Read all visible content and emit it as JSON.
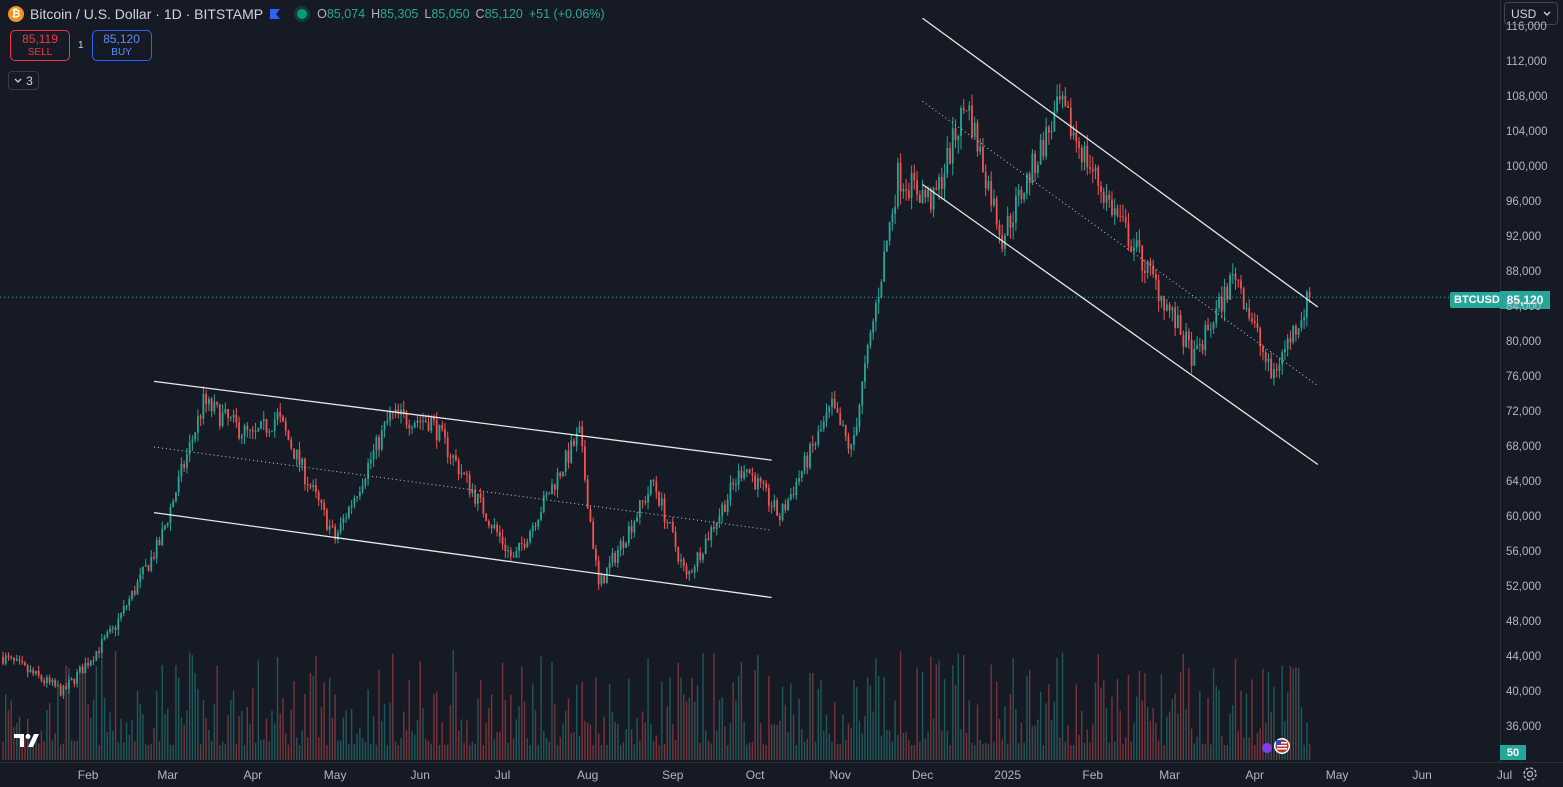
{
  "header": {
    "symbol_title": "Bitcoin / U.S. Dollar · 1D · BITSTAMP",
    "ohlc": {
      "open_label": "O",
      "open": "85,074",
      "high_label": "H",
      "high": "85,305",
      "low_label": "L",
      "low": "85,050",
      "close_label": "C",
      "close": "85,120",
      "change": "+51 (+0.06%)"
    },
    "icons": {
      "logo": "bitcoin-logo-icon",
      "flag": "flag-icon",
      "status": "market-open-dot-icon"
    }
  },
  "trade": {
    "sell_price": "85,119",
    "sell_label": "SELL",
    "spread": "1",
    "buy_price": "85,120",
    "buy_label": "BUY"
  },
  "indicators_toggle": {
    "count": "3"
  },
  "price_scale": {
    "currency": "USD",
    "current_symbol_tag": "BTCUSD",
    "current_price_tag": "85,120",
    "volume_tag": "50",
    "ticks": [
      "116,000",
      "112,000",
      "108,000",
      "104,000",
      "100,000",
      "96,000",
      "92,000",
      "88,000",
      "84,000",
      "80,000",
      "76,000",
      "72,000",
      "68,000",
      "64,000",
      "60,000",
      "56,000",
      "52,000",
      "48,000",
      "44,000",
      "40,000",
      "36,000"
    ]
  },
  "time_scale": {
    "ticks": [
      "Feb",
      "Mar",
      "Apr",
      "May",
      "Jun",
      "Jul",
      "Aug",
      "Sep",
      "Oct",
      "Nov",
      "Dec",
      "2025",
      "Feb",
      "Mar",
      "Apr",
      "May",
      "Jun",
      "Jul"
    ]
  },
  "colors": {
    "background": "#161a25",
    "up": "#26a69a",
    "down": "#ef5350",
    "grid": "#2a2e39"
  },
  "chart_data": {
    "type": "candlestick",
    "current_price": 85120,
    "ylim": [
      33000,
      118000
    ],
    "x_start_month": "2024-01",
    "x_months": [
      "Feb 2024",
      "Mar 2024",
      "Apr 2024",
      "May 2024",
      "Jun 2024",
      "Jul 2024",
      "Aug 2024",
      "Sep 2024",
      "Oct 2024",
      "Nov 2024",
      "Dec 2024",
      "Jan 2025",
      "Feb 2025",
      "Mar 2025",
      "Apr 2025",
      "May 2025",
      "Jun 2025",
      "Jul 2025"
    ],
    "price_path": [
      {
        "date": "2024-01-01",
        "price": 44000
      },
      {
        "date": "2024-01-23",
        "price": 40000
      },
      {
        "date": "2024-02-10",
        "price": 47000
      },
      {
        "date": "2024-02-27",
        "price": 57000
      },
      {
        "date": "2024-03-14",
        "price": 73000
      },
      {
        "date": "2024-04-01",
        "price": 69000
      },
      {
        "date": "2024-04-10",
        "price": 71500
      },
      {
        "date": "2024-05-01",
        "price": 57500
      },
      {
        "date": "2024-05-21",
        "price": 71500
      },
      {
        "date": "2024-06-05",
        "price": 71000
      },
      {
        "date": "2024-07-05",
        "price": 55000
      },
      {
        "date": "2024-07-29",
        "price": 69500
      },
      {
        "date": "2024-08-05",
        "price": 52000
      },
      {
        "date": "2024-08-25",
        "price": 64000
      },
      {
        "date": "2024-09-06",
        "price": 53000
      },
      {
        "date": "2024-09-27",
        "price": 66000
      },
      {
        "date": "2024-10-10",
        "price": 60000
      },
      {
        "date": "2024-10-29",
        "price": 72500
      },
      {
        "date": "2024-11-05",
        "price": 67500
      },
      {
        "date": "2024-11-22",
        "price": 99000
      },
      {
        "date": "2024-12-05",
        "price": 96000
      },
      {
        "date": "2024-12-17",
        "price": 107500
      },
      {
        "date": "2024-12-30",
        "price": 92000
      },
      {
        "date": "2025-01-20",
        "price": 107000
      },
      {
        "date": "2025-02-05",
        "price": 97000
      },
      {
        "date": "2025-02-25",
        "price": 86000
      },
      {
        "date": "2025-03-10",
        "price": 78000
      },
      {
        "date": "2025-03-25",
        "price": 88000
      },
      {
        "date": "2025-04-07",
        "price": 76000
      },
      {
        "date": "2025-04-21",
        "price": 85120
      }
    ],
    "channels": [
      {
        "name": "2024 descending channel",
        "upper": [
          {
            "date": "2024-02-25",
            "price": 75500
          },
          {
            "date": "2024-10-07",
            "price": 66500
          }
        ],
        "middle": [
          {
            "date": "2024-02-25",
            "price": 68000
          },
          {
            "date": "2024-10-07",
            "price": 58500
          }
        ],
        "lower": [
          {
            "date": "2024-02-25",
            "price": 60500
          },
          {
            "date": "2024-10-07",
            "price": 50800
          }
        ]
      },
      {
        "name": "2025 descending channel",
        "upper": [
          {
            "date": "2024-12-01",
            "price": 117000
          },
          {
            "date": "2025-04-24",
            "price": 84000
          }
        ],
        "middle": [
          {
            "date": "2024-12-01",
            "price": 107500
          },
          {
            "date": "2025-04-24",
            "price": 75000
          }
        ],
        "lower": [
          {
            "date": "2024-12-01",
            "price": 98000
          },
          {
            "date": "2025-04-24",
            "price": 66000
          }
        ]
      }
    ],
    "volume": {
      "scale_label": "50"
    }
  }
}
